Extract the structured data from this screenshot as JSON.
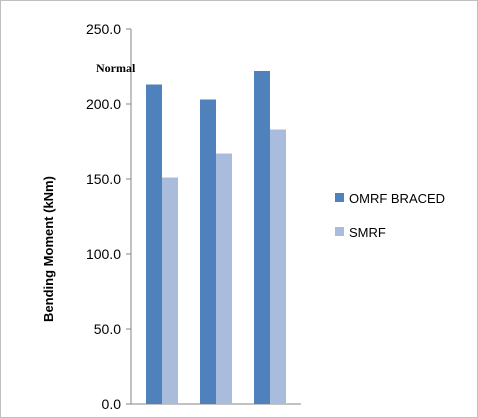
{
  "chart_data": {
    "type": "bar",
    "title": "",
    "annotation": "Normal",
    "xlabel": "",
    "ylabel": "Bending Moment (kNm)",
    "ylim": [
      0,
      250
    ],
    "y_ticks": [
      "0.0",
      "50.0",
      "100.0",
      "150.0",
      "200.0",
      "250.0"
    ],
    "categories": [
      "",
      "",
      ""
    ],
    "series": [
      {
        "name": "OMRF BRACED",
        "color": "#4f81bd",
        "values": [
          213,
          203,
          222
        ]
      },
      {
        "name": "SMRF",
        "color": "#a9bcdb",
        "values": [
          151,
          167,
          183
        ]
      }
    ],
    "grid": false,
    "legend_position": "right"
  }
}
